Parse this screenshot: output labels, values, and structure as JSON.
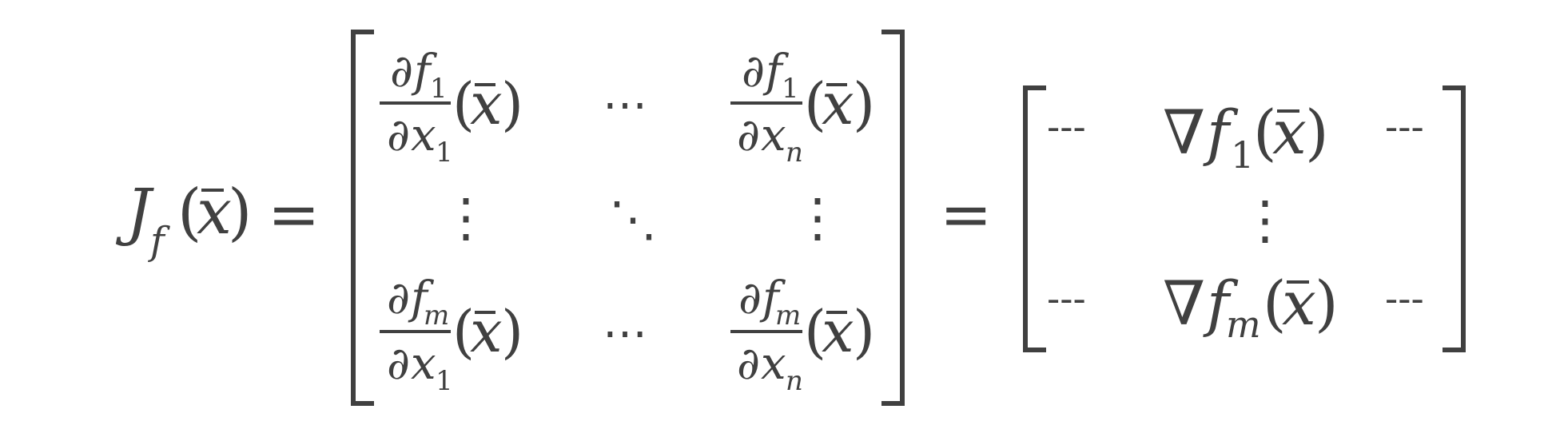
{
  "equation": {
    "lhs": {
      "J": "J",
      "f": "f",
      "paren_open": "(",
      "x": "x",
      "paren_close": ")"
    },
    "equals": "=",
    "partial": "∂",
    "f": "f",
    "x": "x",
    "arg": {
      "open": "(",
      "x": "x",
      "close": ")"
    },
    "matrix1": {
      "r1c1": {
        "num_sub": "1",
        "den_sub": "1"
      },
      "r1c3": {
        "num_sub": "1",
        "den_sub": "n"
      },
      "r3c1": {
        "num_sub": "m",
        "den_sub": "1"
      },
      "r3c3": {
        "num_sub": "m",
        "den_sub": "n"
      },
      "hdots": "⋯",
      "vdots": "⋮",
      "ddots": "⋱"
    },
    "matrix2": {
      "dash": "---",
      "nabla": "∇",
      "row1_sub": "1",
      "rowm_sub": "m",
      "vdots": "⋮"
    }
  }
}
